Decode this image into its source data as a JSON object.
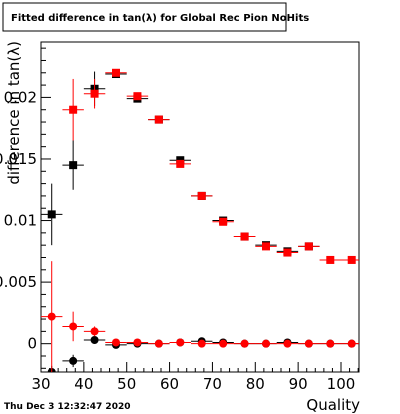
{
  "chart_data": {
    "type": "scatter",
    "title": "Fitted difference in tan(λ) for Global Rec Pion NoHits",
    "xlabel": "Quality",
    "ylabel": "difference in tan(λ)",
    "footer": "Thu Dec  3 12:32:47 2020",
    "xlim": [
      30,
      104.2
    ],
    "ylim": [
      -0.0023,
      0.0245
    ],
    "xticks": [
      30,
      40,
      50,
      60,
      70,
      80,
      90,
      100
    ],
    "yticks": [
      0,
      0.005,
      0.01,
      0.015,
      0.02
    ],
    "ytick_labels": [
      "0",
      "0.005",
      "0.01",
      "0.015",
      "0.02"
    ],
    "grid": false,
    "legend": false,
    "colors": {
      "black": "#000000",
      "red": "#ff0000"
    },
    "series": [
      {
        "color": "#000000",
        "marker": "square",
        "xerr": 2.5,
        "x": [
          32.5,
          37.5,
          42.5,
          47.5,
          52.5,
          57.5,
          62.5,
          67.5,
          72.5,
          77.5,
          82.5,
          87.5,
          92.5
        ],
        "y": [
          0.0105,
          0.0145,
          0.0207,
          0.0219,
          0.0199,
          0.0182,
          0.0149,
          0.012,
          0.01,
          0.0087,
          0.008,
          0.0075,
          0.0079
        ],
        "yerr": [
          0.0025,
          0.002,
          0.0014,
          0.0002,
          0.0002,
          0.0001,
          0.0001,
          0.0001,
          0.0001,
          0.0001,
          0.0001,
          0.0001,
          0.0001
        ]
      },
      {
        "color": "#ff0000",
        "marker": "square",
        "xerr": 2.5,
        "x": [
          37.5,
          42.5,
          47.5,
          52.5,
          57.5,
          62.5,
          67.5,
          72.5,
          77.5,
          82.5,
          87.5,
          92.5,
          97.5,
          102.5
        ],
        "y": [
          0.019,
          0.0203,
          0.022,
          0.0201,
          0.0182,
          0.0146,
          0.012,
          0.0099,
          0.0087,
          0.0079,
          0.0074,
          0.0079,
          0.0068,
          0.0068
        ],
        "yerr": [
          0.0025,
          0.0012,
          0.0002,
          0.0002,
          0.0001,
          0.0001,
          0.0001,
          0.0001,
          0.0001,
          0.0001,
          0.0001,
          0.0001,
          0.0001,
          0.0001
        ]
      },
      {
        "color": "#000000",
        "marker": "circle",
        "xerr": 2.5,
        "x": [
          32.5,
          37.5,
          42.5,
          47.5,
          52.5,
          57.5,
          62.5,
          67.5,
          72.5,
          77.5,
          82.5,
          87.5,
          92.5,
          97.5,
          102.5
        ],
        "y": [
          -0.0023,
          -0.0014,
          0.0003,
          -0.0001,
          0.0,
          0.0,
          0.0001,
          0.0002,
          0.0001,
          0.0,
          0.0,
          0.0001,
          0.0,
          0.0,
          0.0
        ],
        "yerr": [
          0.0005,
          0.0005,
          0.0003,
          0.0002,
          0.0001,
          0.0001,
          0.0001,
          0.0001,
          0.0001,
          0.0001,
          0.0001,
          0.0001,
          0.0001,
          0.0001,
          0.0001
        ]
      },
      {
        "color": "#ff0000",
        "marker": "circle",
        "xerr": 2.5,
        "x": [
          32.5,
          37.5,
          42.5,
          47.5,
          52.5,
          57.5,
          62.5,
          67.5,
          72.5,
          77.5,
          82.5,
          87.5,
          92.5,
          97.5,
          102.5
        ],
        "y": [
          0.0022,
          0.0014,
          0.001,
          0.0001,
          0.0001,
          0.0,
          0.0001,
          0.0,
          0.0,
          0.0,
          0.0,
          0.0,
          0.0,
          0.0,
          0.0
        ],
        "yerr": [
          0.0045,
          0.0012,
          0.0004,
          0.0002,
          0.0001,
          0.0001,
          0.0001,
          0.0001,
          0.0001,
          0.0001,
          0.0001,
          0.0001,
          0.0001,
          0.0001,
          0.0001
        ]
      }
    ]
  }
}
